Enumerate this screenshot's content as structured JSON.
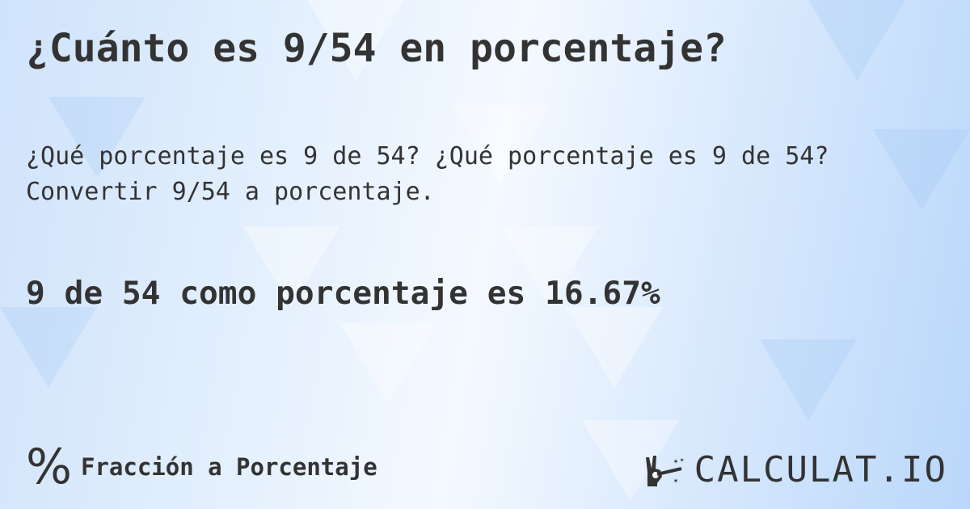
{
  "title": "¿Cuánto es 9/54 en porcentaje?",
  "description": "¿Qué porcentaje es 9 de 54? ¿Qué porcentaje es 9 de 54? Convertir 9/54 a porcentaje.",
  "result": "9 de 54 como porcentaje es 16.67%",
  "footer": {
    "icon": "percent-icon",
    "category": "Fracción a Porcentaje"
  },
  "logo": {
    "text": "CALCULAT.IO",
    "icon": "magic-hand-wand-icon"
  },
  "colors": {
    "text": "#333333",
    "background": "#dcebfd"
  }
}
